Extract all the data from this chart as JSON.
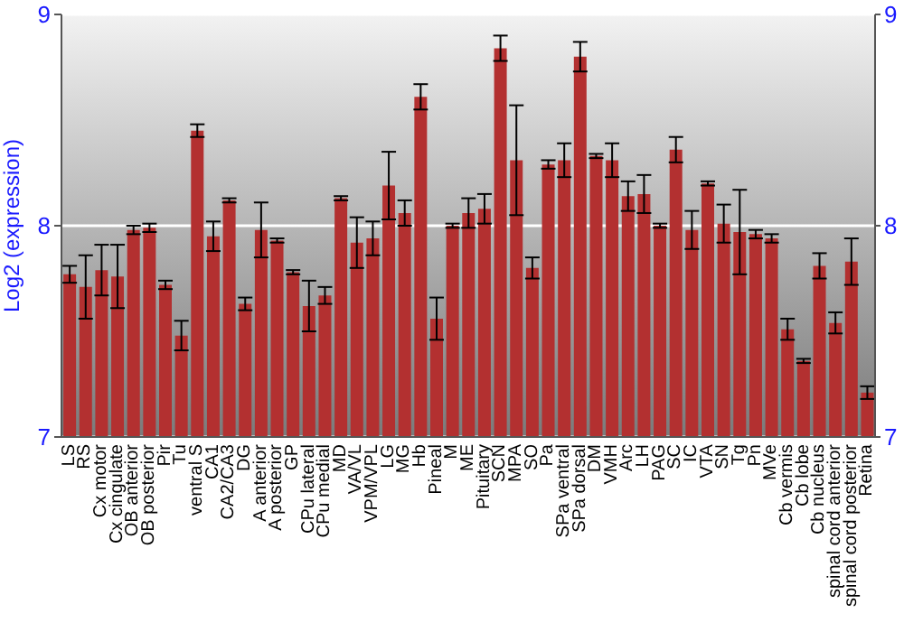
{
  "chart_data": {
    "type": "bar",
    "ylabel": "Log2 (expression)",
    "categories": [
      "LS",
      "RS",
      "Cx motor",
      "Cx cingulate",
      "OB anterior",
      "OB posterior",
      "Pir",
      "Tu",
      "ventral S",
      "CA1",
      "CA2/CA3",
      "DG",
      "A anterior",
      "A posterior",
      "GP",
      "CPu lateral",
      "CPu medial",
      "MD",
      "VA/VL",
      "VPM/VPL",
      "LG",
      "MG",
      "Hb",
      "Pineal",
      "M",
      "ME",
      "Pituitary",
      "SCN",
      "MPA",
      "SO",
      "Pa",
      "SPa ventral",
      "SPa dorsal",
      "DM",
      "VMH",
      "Arc",
      "LH",
      "PAG",
      "SC",
      "IC",
      "VTA",
      "SN",
      "Tg",
      "Pn",
      "MVe",
      "Cb vermis",
      "Cb lobe",
      "Cb nucleus",
      "spinal cord anterior",
      "spinal cord posterior",
      "Retina"
    ],
    "values": [
      7.77,
      7.71,
      7.79,
      7.76,
      7.98,
      7.99,
      7.72,
      7.48,
      8.45,
      7.95,
      8.12,
      7.63,
      7.98,
      7.93,
      7.78,
      7.62,
      7.67,
      8.13,
      7.92,
      7.94,
      8.19,
      8.06,
      8.61,
      7.56,
      8.0,
      8.06,
      8.08,
      8.84,
      8.31,
      7.8,
      8.29,
      8.31,
      8.8,
      8.33,
      8.31,
      8.14,
      8.15,
      8.0,
      8.36,
      7.98,
      8.2,
      8.01,
      7.97,
      7.96,
      7.94,
      7.51,
      7.36,
      7.81,
      7.54,
      7.83,
      7.21
    ],
    "errors": [
      0.04,
      0.15,
      0.12,
      0.15,
      0.02,
      0.02,
      0.02,
      0.07,
      0.03,
      0.07,
      0.01,
      0.03,
      0.13,
      0.01,
      0.01,
      0.12,
      0.04,
      0.01,
      0.12,
      0.08,
      0.16,
      0.06,
      0.06,
      0.1,
      0.01,
      0.07,
      0.07,
      0.06,
      0.26,
      0.05,
      0.02,
      0.08,
      0.07,
      0.01,
      0.08,
      0.07,
      0.09,
      0.01,
      0.06,
      0.09,
      0.01,
      0.09,
      0.2,
      0.02,
      0.02,
      0.05,
      0.01,
      0.06,
      0.05,
      0.11,
      0.03
    ],
    "color": "#b33030",
    "ylim": [
      7,
      9
    ],
    "yticks": [
      7,
      8,
      9
    ],
    "y2lim": [
      7,
      9
    ],
    "y2ticks": [
      7,
      8,
      9
    ],
    "grid": "y"
  }
}
